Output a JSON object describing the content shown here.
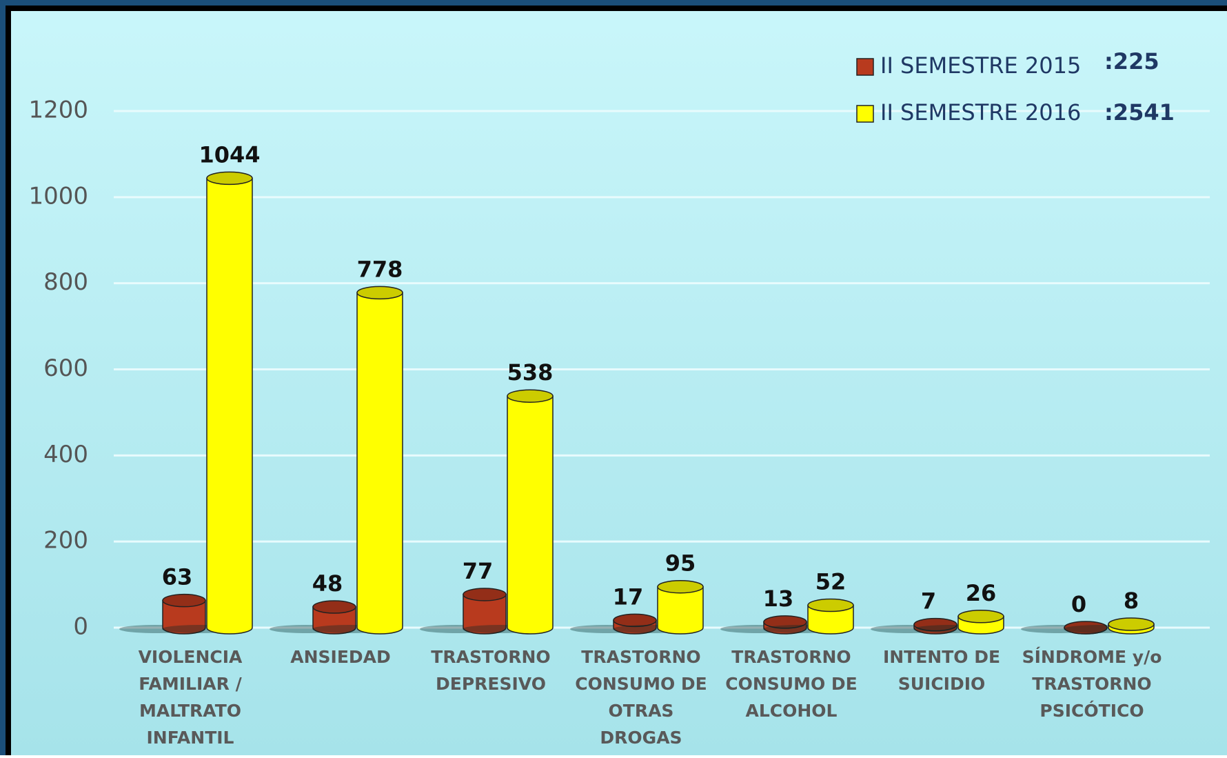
{
  "chart_data": {
    "type": "bar3d",
    "categories": [
      [
        "VIOLENCIA",
        "FAMILIAR /",
        "MALTRATO",
        "INFANTIL"
      ],
      [
        "ANSIEDAD"
      ],
      [
        "TRASTORNO",
        "DEPRESIVO"
      ],
      [
        "TRASTORNO",
        "CONSUMO DE",
        "OTRAS",
        "DROGAS"
      ],
      [
        "TRASTORNO",
        "CONSUMO DE",
        "ALCOHOL"
      ],
      [
        "INTENTO DE",
        "SUICIDIO"
      ],
      [
        "SÍNDROME y/o",
        "TRASTORNO",
        "PSICÓTICO"
      ]
    ],
    "series": [
      {
        "name": "II SEMESTRE 2015",
        "total_label": ":225",
        "color": "#b83a1e",
        "values": [
          63,
          48,
          77,
          17,
          13,
          7,
          0
        ]
      },
      {
        "name": "II SEMESTRE 2016",
        "total_label": ":2541",
        "color": "#ffff00",
        "values": [
          1044,
          778,
          538,
          95,
          52,
          26,
          8
        ]
      }
    ],
    "ylim": [
      0,
      1200
    ],
    "yticks": [
      0,
      200,
      400,
      600,
      800,
      1000,
      1200
    ],
    "grid": true,
    "legend": "top-right"
  }
}
